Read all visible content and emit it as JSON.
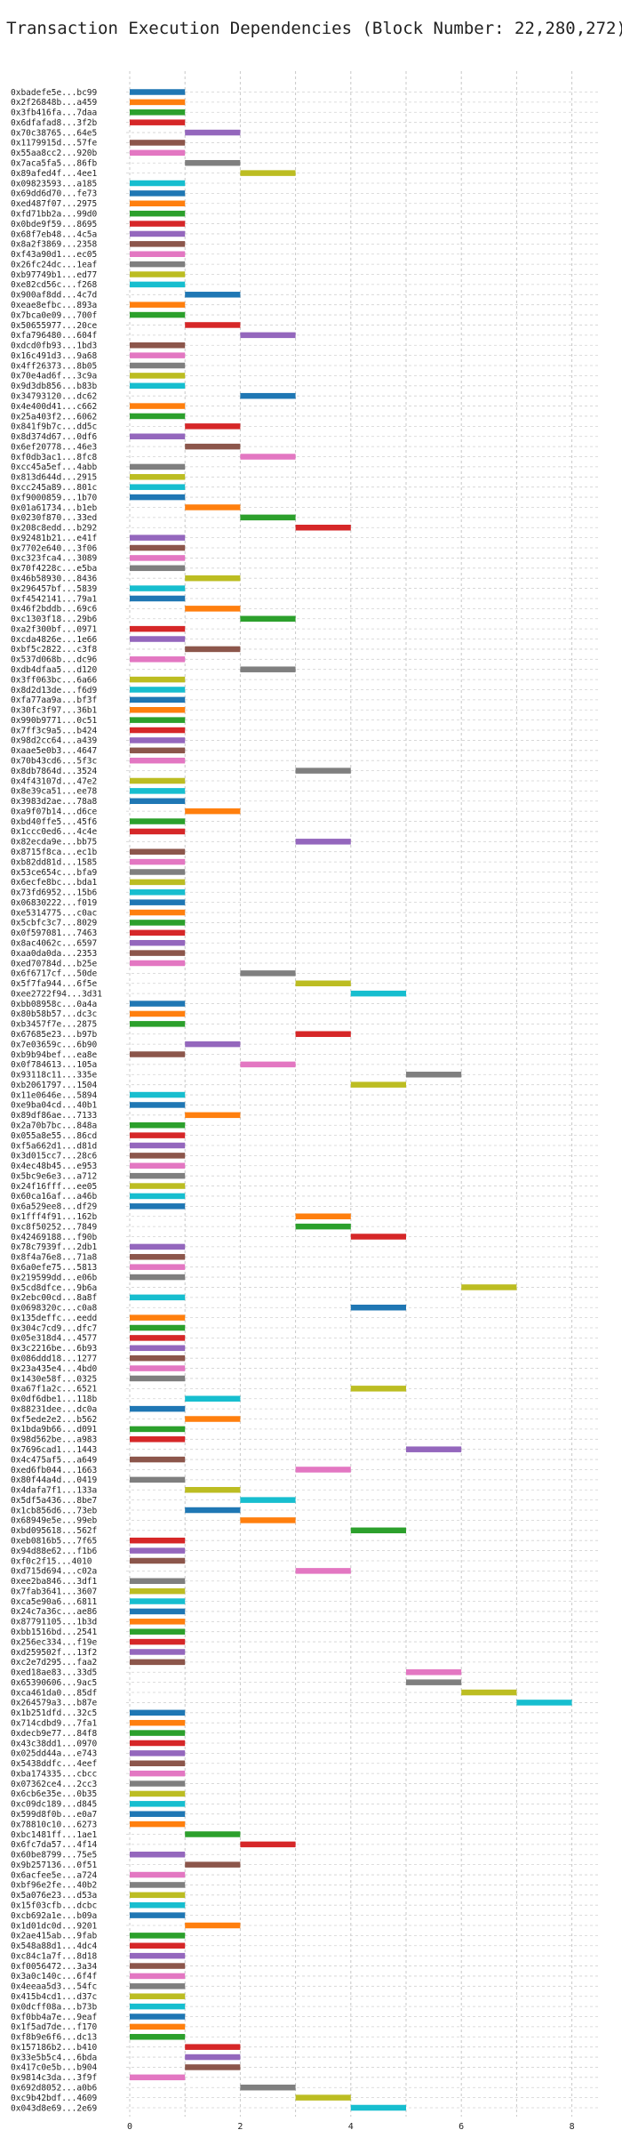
{
  "chart_data": {
    "type": "bar",
    "orientation": "horizontal-gantt",
    "title": "Transaction Execution Dependencies (Block Number: 22,280,272)",
    "xlabel": "",
    "ylabel": "",
    "xlim": [
      0,
      8.5
    ],
    "xticks": [
      0,
      2,
      4,
      6,
      8
    ],
    "grid": true,
    "legend": "none",
    "palette": [
      "#1f77b4",
      "#ff7f0e",
      "#2ca02c",
      "#d62728",
      "#9467bd",
      "#8c564b",
      "#e377c2",
      "#7f7f7f",
      "#bcbd22",
      "#17becf"
    ],
    "transactions": [
      {
        "label": "0xbadefe5e...bc99",
        "start": 0,
        "end": 1
      },
      {
        "label": "0x2f26848b...a459",
        "start": 0,
        "end": 1
      },
      {
        "label": "0x3fb416fa...7daa",
        "start": 0,
        "end": 1
      },
      {
        "label": "0x6dfafad8...3f2b",
        "start": 0,
        "end": 1
      },
      {
        "label": "0x70c38765...64e5",
        "start": 1,
        "end": 2
      },
      {
        "label": "0x1179915d...57fe",
        "start": 0,
        "end": 1
      },
      {
        "label": "0x55aa8cc2...920b",
        "start": 0,
        "end": 1
      },
      {
        "label": "0x7aca5fa5...86fb",
        "start": 1,
        "end": 2
      },
      {
        "label": "0x89afed4f...4ee1",
        "start": 2,
        "end": 3
      },
      {
        "label": "0x09823593...a185",
        "start": 0,
        "end": 1
      },
      {
        "label": "0x69dd6d70...fe73",
        "start": 0,
        "end": 1
      },
      {
        "label": "0xed487f07...2975",
        "start": 0,
        "end": 1
      },
      {
        "label": "0xfd71bb2a...99d0",
        "start": 0,
        "end": 1
      },
      {
        "label": "0x0bde9f59...8695",
        "start": 0,
        "end": 1
      },
      {
        "label": "0x68f7eb48...4c5a",
        "start": 0,
        "end": 1
      },
      {
        "label": "0x8a2f3869...2358",
        "start": 0,
        "end": 1
      },
      {
        "label": "0xf43a90d1...ec05",
        "start": 0,
        "end": 1
      },
      {
        "label": "0x26fc24dc...1eaf",
        "start": 0,
        "end": 1
      },
      {
        "label": "0xb97749b1...ed77",
        "start": 0,
        "end": 1
      },
      {
        "label": "0xe82cd56c...f268",
        "start": 0,
        "end": 1
      },
      {
        "label": "0x900af8dd...4c7d",
        "start": 1,
        "end": 2
      },
      {
        "label": "0xeae8efbc...893a",
        "start": 0,
        "end": 1
      },
      {
        "label": "0x7bca0e09...700f",
        "start": 0,
        "end": 1
      },
      {
        "label": "0x50655977...20ce",
        "start": 1,
        "end": 2
      },
      {
        "label": "0xfa796480...604f",
        "start": 2,
        "end": 3
      },
      {
        "label": "0xdcd0fb93...1bd3",
        "start": 0,
        "end": 1
      },
      {
        "label": "0x16c491d3...9a68",
        "start": 0,
        "end": 1
      },
      {
        "label": "0x4ff26373...8b05",
        "start": 0,
        "end": 1
      },
      {
        "label": "0x70e4ad6f...3c9a",
        "start": 0,
        "end": 1
      },
      {
        "label": "0x9d3db856...b83b",
        "start": 0,
        "end": 1
      },
      {
        "label": "0x34793120...dc62",
        "start": 2,
        "end": 3
      },
      {
        "label": "0x4e400d41...c662",
        "start": 0,
        "end": 1
      },
      {
        "label": "0x25a403f2...6062",
        "start": 0,
        "end": 1
      },
      {
        "label": "0x841f9b7c...dd5c",
        "start": 1,
        "end": 2
      },
      {
        "label": "0x8d374d67...0df6",
        "start": 0,
        "end": 1
      },
      {
        "label": "0x6ef20778...46e3",
        "start": 1,
        "end": 2
      },
      {
        "label": "0xf0db3ac1...8fc8",
        "start": 2,
        "end": 3
      },
      {
        "label": "0xcc45a5ef...4abb",
        "start": 0,
        "end": 1
      },
      {
        "label": "0x813d644d...2915",
        "start": 0,
        "end": 1
      },
      {
        "label": "0xcc245a89...801c",
        "start": 0,
        "end": 1
      },
      {
        "label": "0xf9000859...1b70",
        "start": 0,
        "end": 1
      },
      {
        "label": "0x01a61734...b1eb",
        "start": 1,
        "end": 2
      },
      {
        "label": "0x0230f870...33ed",
        "start": 2,
        "end": 3
      },
      {
        "label": "0x208c8edd...b292",
        "start": 3,
        "end": 4
      },
      {
        "label": "0x92481b21...e41f",
        "start": 0,
        "end": 1
      },
      {
        "label": "0x7702e640...3f06",
        "start": 0,
        "end": 1
      },
      {
        "label": "0xc323fca4...3089",
        "start": 0,
        "end": 1
      },
      {
        "label": "0x70f4228c...e5ba",
        "start": 0,
        "end": 1
      },
      {
        "label": "0x46b58930...8436",
        "start": 1,
        "end": 2
      },
      {
        "label": "0x296457bf...5839",
        "start": 0,
        "end": 1
      },
      {
        "label": "0xf4542141...79a1",
        "start": 0,
        "end": 1
      },
      {
        "label": "0x46f2bddb...69c6",
        "start": 1,
        "end": 2
      },
      {
        "label": "0xc1303f18...29b6",
        "start": 2,
        "end": 3
      },
      {
        "label": "0xa2f300bf...0971",
        "start": 0,
        "end": 1
      },
      {
        "label": "0xcda4826e...1e66",
        "start": 0,
        "end": 1
      },
      {
        "label": "0xbf5c2822...c3f8",
        "start": 1,
        "end": 2
      },
      {
        "label": "0x537d068b...dc96",
        "start": 0,
        "end": 1
      },
      {
        "label": "0xdb4dfaa5...d120",
        "start": 2,
        "end": 3
      },
      {
        "label": "0x3ff063bc...6a66",
        "start": 0,
        "end": 1
      },
      {
        "label": "0x8d2d13de...f6d9",
        "start": 0,
        "end": 1
      },
      {
        "label": "0xfa77aa9a...bf3f",
        "start": 0,
        "end": 1
      },
      {
        "label": "0x30fc3f97...36b1",
        "start": 0,
        "end": 1
      },
      {
        "label": "0x990b9771...0c51",
        "start": 0,
        "end": 1
      },
      {
        "label": "0x7ff3c9a5...b424",
        "start": 0,
        "end": 1
      },
      {
        "label": "0x98d2cc64...a439",
        "start": 0,
        "end": 1
      },
      {
        "label": "0xaae5e0b3...4647",
        "start": 0,
        "end": 1
      },
      {
        "label": "0x70b43cd6...5f3c",
        "start": 0,
        "end": 1
      },
      {
        "label": "0x8db7864d...3524",
        "start": 3,
        "end": 4
      },
      {
        "label": "0x4f43107d...47e2",
        "start": 0,
        "end": 1
      },
      {
        "label": "0x8e39ca51...ee78",
        "start": 0,
        "end": 1
      },
      {
        "label": "0x3983d2ae...78a8",
        "start": 0,
        "end": 1
      },
      {
        "label": "0xa9f07b14...d6ce",
        "start": 1,
        "end": 2
      },
      {
        "label": "0xbd40ffe5...45f6",
        "start": 0,
        "end": 1
      },
      {
        "label": "0x1ccc0ed6...4c4e",
        "start": 0,
        "end": 1
      },
      {
        "label": "0x82ecda9e...bb75",
        "start": 3,
        "end": 4
      },
      {
        "label": "0x8715f8ca...ec1b",
        "start": 0,
        "end": 1
      },
      {
        "label": "0xb82dd81d...1585",
        "start": 0,
        "end": 1
      },
      {
        "label": "0x53ce654c...bfa9",
        "start": 0,
        "end": 1
      },
      {
        "label": "0x6ecfe8bc...bda1",
        "start": 0,
        "end": 1
      },
      {
        "label": "0x73fd6952...15b6",
        "start": 0,
        "end": 1
      },
      {
        "label": "0x06830222...f019",
        "start": 0,
        "end": 1
      },
      {
        "label": "0xe5314775...c0ac",
        "start": 0,
        "end": 1
      },
      {
        "label": "0x5cbfc3c7...8029",
        "start": 0,
        "end": 1
      },
      {
        "label": "0x0f597081...7463",
        "start": 0,
        "end": 1
      },
      {
        "label": "0x8ac4062c...6597",
        "start": 0,
        "end": 1
      },
      {
        "label": "0xaa0da0da...2353",
        "start": 0,
        "end": 1
      },
      {
        "label": "0xed70784d...b25e",
        "start": 0,
        "end": 1
      },
      {
        "label": "0x6f6717cf...50de",
        "start": 2,
        "end": 3
      },
      {
        "label": "0x5f7fa944...6f5e",
        "start": 3,
        "end": 4
      },
      {
        "label": "0xee2722f94...3d31",
        "start": 4,
        "end": 5
      },
      {
        "label": "0xbb08958c...0a4a",
        "start": 0,
        "end": 1
      },
      {
        "label": "0x80b58b57...dc3c",
        "start": 0,
        "end": 1
      },
      {
        "label": "0xb3457f7e...2875",
        "start": 0,
        "end": 1
      },
      {
        "label": "0x67685e23...b97b",
        "start": 3,
        "end": 4
      },
      {
        "label": "0x7e03659c...6b90",
        "start": 1,
        "end": 2
      },
      {
        "label": "0xb9b94bef...ea8e",
        "start": 0,
        "end": 1
      },
      {
        "label": "0x0f784613...105a",
        "start": 2,
        "end": 3
      },
      {
        "label": "0x93118c11...335e",
        "start": 5,
        "end": 6
      },
      {
        "label": "0xb2061797...1504",
        "start": 4,
        "end": 5
      },
      {
        "label": "0x11e0646e...5894",
        "start": 0,
        "end": 1
      },
      {
        "label": "0xe9ba04cd...40b1",
        "start": 0,
        "end": 1
      },
      {
        "label": "0x89df86ae...7133",
        "start": 1,
        "end": 2
      },
      {
        "label": "0x2a70b7bc...848a",
        "start": 0,
        "end": 1
      },
      {
        "label": "0x055a8e55...86cd",
        "start": 0,
        "end": 1
      },
      {
        "label": "0xf5a662d1...d81d",
        "start": 0,
        "end": 1
      },
      {
        "label": "0x3d015cc7...28c6",
        "start": 0,
        "end": 1
      },
      {
        "label": "0x4ec48b45...e953",
        "start": 0,
        "end": 1
      },
      {
        "label": "0x5bc9e6e3...a712",
        "start": 0,
        "end": 1
      },
      {
        "label": "0x24f16fff...ee05",
        "start": 0,
        "end": 1
      },
      {
        "label": "0x60ca16af...a46b",
        "start": 0,
        "end": 1
      },
      {
        "label": "0x6a529ee8...df29",
        "start": 0,
        "end": 1
      },
      {
        "label": "0x1fff4f91...162b",
        "start": 3,
        "end": 4
      },
      {
        "label": "0xc8f50252...7849",
        "start": 3,
        "end": 4
      },
      {
        "label": "0x42469188...f90b",
        "start": 4,
        "end": 5
      },
      {
        "label": "0x78c7939f...2db1",
        "start": 0,
        "end": 1
      },
      {
        "label": "0x8f4a76e8...71a8",
        "start": 0,
        "end": 1
      },
      {
        "label": "0x6a0efe75...5813",
        "start": 0,
        "end": 1
      },
      {
        "label": "0x219599dd...e06b",
        "start": 0,
        "end": 1
      },
      {
        "label": "0x5cd8dfce...9b6a",
        "start": 6,
        "end": 7
      },
      {
        "label": "0x2ebc00cd...8a8f",
        "start": 0,
        "end": 1
      },
      {
        "label": "0x0698320c...c0a8",
        "start": 4,
        "end": 5
      },
      {
        "label": "0x135deffc...eedd",
        "start": 0,
        "end": 1
      },
      {
        "label": "0x304c7cd9...dfc7",
        "start": 0,
        "end": 1
      },
      {
        "label": "0x05e318d4...4577",
        "start": 0,
        "end": 1
      },
      {
        "label": "0x3c2216be...6b93",
        "start": 0,
        "end": 1
      },
      {
        "label": "0x086ddd18...1277",
        "start": 0,
        "end": 1
      },
      {
        "label": "0x23a435e4...4bd0",
        "start": 0,
        "end": 1
      },
      {
        "label": "0x1430e58f...0325",
        "start": 0,
        "end": 1
      },
      {
        "label": "0xa67f1a2c...6521",
        "start": 4,
        "end": 5
      },
      {
        "label": "0x0df6dbe1...118b",
        "start": 1,
        "end": 2
      },
      {
        "label": "0x88231dee...dc0a",
        "start": 0,
        "end": 1
      },
      {
        "label": "0xf5ede2e2...b562",
        "start": 1,
        "end": 2
      },
      {
        "label": "0x1bda9b66...d091",
        "start": 0,
        "end": 1
      },
      {
        "label": "0x98d562be...a983",
        "start": 0,
        "end": 1
      },
      {
        "label": "0x7696cad1...1443",
        "start": 5,
        "end": 6
      },
      {
        "label": "0x4c475af5...a649",
        "start": 0,
        "end": 1
      },
      {
        "label": "0xed6fb044...1663",
        "start": 3,
        "end": 4
      },
      {
        "label": "0x80f44a4d...0419",
        "start": 0,
        "end": 1
      },
      {
        "label": "0x4dafa7f1...133a",
        "start": 1,
        "end": 2
      },
      {
        "label": "0x5df5a436...8be7",
        "start": 2,
        "end": 3
      },
      {
        "label": "0x1cb856d6...73eb",
        "start": 1,
        "end": 2
      },
      {
        "label": "0x68949e5e...99eb",
        "start": 2,
        "end": 3
      },
      {
        "label": "0xbd095618...562f",
        "start": 4,
        "end": 5
      },
      {
        "label": "0xeb0816b5...7f65",
        "start": 0,
        "end": 1
      },
      {
        "label": "0x94d88e62...f1b6",
        "start": 0,
        "end": 1
      },
      {
        "label": "0xf0c2f15...4010",
        "start": 0,
        "end": 1
      },
      {
        "label": "0xd715d694...c02a",
        "start": 3,
        "end": 4
      },
      {
        "label": "0xee2ba846...3df1",
        "start": 0,
        "end": 1
      },
      {
        "label": "0x7fab3641...3607",
        "start": 0,
        "end": 1
      },
      {
        "label": "0xca5e90a6...6811",
        "start": 0,
        "end": 1
      },
      {
        "label": "0x24c7a36c...ae86",
        "start": 0,
        "end": 1
      },
      {
        "label": "0x87791105...1b3d",
        "start": 0,
        "end": 1
      },
      {
        "label": "0xbb1516bd...2541",
        "start": 0,
        "end": 1
      },
      {
        "label": "0x256ec334...f19e",
        "start": 0,
        "end": 1
      },
      {
        "label": "0xd259502f...13f2",
        "start": 0,
        "end": 1
      },
      {
        "label": "0xc2e7d295...faa2",
        "start": 0,
        "end": 1
      },
      {
        "label": "0xed18ae83...33d5",
        "start": 5,
        "end": 6
      },
      {
        "label": "0x65390606...9ac5",
        "start": 5,
        "end": 6
      },
      {
        "label": "0xca461da0...85df",
        "start": 6,
        "end": 7
      },
      {
        "label": "0x264579a3...b87e",
        "start": 7,
        "end": 8
      },
      {
        "label": "0x1b251dfd...32c5",
        "start": 0,
        "end": 1
      },
      {
        "label": "0x714cdbd9...7fa1",
        "start": 0,
        "end": 1
      },
      {
        "label": "0xdecb9e77...84f8",
        "start": 0,
        "end": 1
      },
      {
        "label": "0x43c38dd1...0970",
        "start": 0,
        "end": 1
      },
      {
        "label": "0x025dd44a...e743",
        "start": 0,
        "end": 1
      },
      {
        "label": "0x5438ddfc...4eef",
        "start": 0,
        "end": 1
      },
      {
        "label": "0xba174335...cbcc",
        "start": 0,
        "end": 1
      },
      {
        "label": "0x07362ce4...2cc3",
        "start": 0,
        "end": 1
      },
      {
        "label": "0x6cb6e35e...0b35",
        "start": 0,
        "end": 1
      },
      {
        "label": "0xc09dc189...d845",
        "start": 0,
        "end": 1
      },
      {
        "label": "0x599d8f0b...e0a7",
        "start": 0,
        "end": 1
      },
      {
        "label": "0x78810c10...6273",
        "start": 0,
        "end": 1
      },
      {
        "label": "0xbc1481ff...1ae1",
        "start": 1,
        "end": 2
      },
      {
        "label": "0x6fc7da57...4f14",
        "start": 2,
        "end": 3
      },
      {
        "label": "0x60be8799...75e5",
        "start": 0,
        "end": 1
      },
      {
        "label": "0x9b257136...0f51",
        "start": 1,
        "end": 2
      },
      {
        "label": "0x6acfee5e...a724",
        "start": 0,
        "end": 1
      },
      {
        "label": "0xbf96e2fe...40b2",
        "start": 0,
        "end": 1
      },
      {
        "label": "0x5a076e23...d53a",
        "start": 0,
        "end": 1
      },
      {
        "label": "0x15f03cfb...dcbc",
        "start": 0,
        "end": 1
      },
      {
        "label": "0xcb692a1e...b09a",
        "start": 0,
        "end": 1
      },
      {
        "label": "0x1d01dc0d...9201",
        "start": 1,
        "end": 2
      },
      {
        "label": "0x2ae415ab...9fab",
        "start": 0,
        "end": 1
      },
      {
        "label": "0x548a88d1...4dc4",
        "start": 0,
        "end": 1
      },
      {
        "label": "0xc84c1a7f...8d18",
        "start": 0,
        "end": 1
      },
      {
        "label": "0xf0056472...3a34",
        "start": 0,
        "end": 1
      },
      {
        "label": "0x3a0c140c...6f4f",
        "start": 0,
        "end": 1
      },
      {
        "label": "0x4eeaa5d3...54fc",
        "start": 0,
        "end": 1
      },
      {
        "label": "0x415b4cd1...d37c",
        "start": 0,
        "end": 1
      },
      {
        "label": "0x0dcff08a...b73b",
        "start": 0,
        "end": 1
      },
      {
        "label": "0xf0bb4a7e...9eaf",
        "start": 0,
        "end": 1
      },
      {
        "label": "0x1f5ad7de...f170",
        "start": 0,
        "end": 1
      },
      {
        "label": "0xf8b9e6f6...dc13",
        "start": 0,
        "end": 1
      },
      {
        "label": "0x157186b2...b410",
        "start": 1,
        "end": 2
      },
      {
        "label": "0x33e5b5c4...6bda",
        "start": 1,
        "end": 2
      },
      {
        "label": "0x417c0e5b...b904",
        "start": 1,
        "end": 2
      },
      {
        "label": "0x9814c3da...3f9f",
        "start": 0,
        "end": 1
      },
      {
        "label": "0x692d8052...a0b6",
        "start": 2,
        "end": 3
      },
      {
        "label": "0xc9b42bdf...4609",
        "start": 3,
        "end": 4
      },
      {
        "label": "0x043d8e69...2e69",
        "start": 4,
        "end": 5
      }
    ]
  }
}
